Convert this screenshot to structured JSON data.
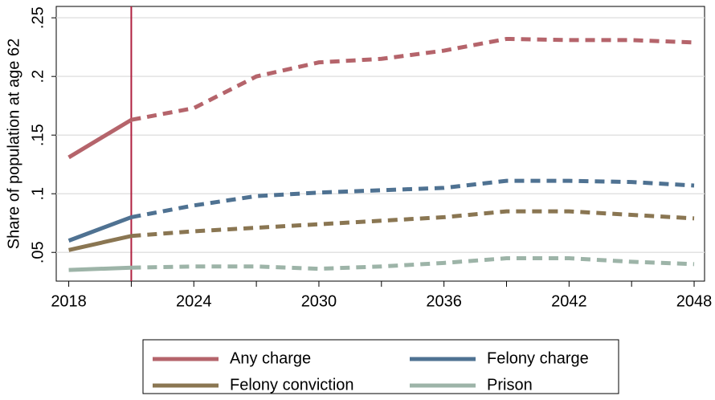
{
  "chart_data": {
    "type": "line",
    "y_label": "Share of population at age 62",
    "x": [
      2018,
      2021,
      2024,
      2027,
      2030,
      2033,
      2036,
      2039,
      2042,
      2045,
      2048
    ],
    "series": [
      {
        "name": "Any charge",
        "color": "#b5646b",
        "values": [
          0.131,
          0.163,
          0.173,
          0.2,
          0.212,
          0.215,
          0.222,
          0.232,
          0.231,
          0.231,
          0.229
        ]
      },
      {
        "name": "Felony charge",
        "color": "#4f7292",
        "values": [
          0.06,
          0.08,
          0.09,
          0.098,
          0.101,
          0.103,
          0.105,
          0.111,
          0.111,
          0.11,
          0.107
        ]
      },
      {
        "name": "Felony conviction",
        "color": "#8a7652",
        "values": [
          0.052,
          0.064,
          0.068,
          0.071,
          0.074,
          0.077,
          0.08,
          0.085,
          0.085,
          0.082,
          0.079
        ]
      },
      {
        "name": "Prison",
        "color": "#9db4a8",
        "values": [
          0.035,
          0.037,
          0.038,
          0.038,
          0.036,
          0.038,
          0.041,
          0.045,
          0.045,
          0.042,
          0.04
        ]
      }
    ],
    "projection_start": 2021,
    "projection_line_color": "#b0203f",
    "xlim": [
      2017.4,
      2048.5
    ],
    "ylim": [
      0.0255,
      0.2597
    ],
    "xticks": [
      2018,
      2024,
      2030,
      2036,
      2042,
      2048
    ],
    "xminor_ticks": [
      2021,
      2027,
      2033,
      2039,
      2045
    ],
    "yticks": [
      {
        "value": 0.05,
        "label": ".05"
      },
      {
        "value": 0.1,
        "label": ".1"
      },
      {
        "value": 0.15,
        "label": ".15"
      },
      {
        "value": 0.2,
        "label": ".2"
      },
      {
        "value": 0.25,
        "label": ".25"
      }
    ],
    "grid": true
  }
}
